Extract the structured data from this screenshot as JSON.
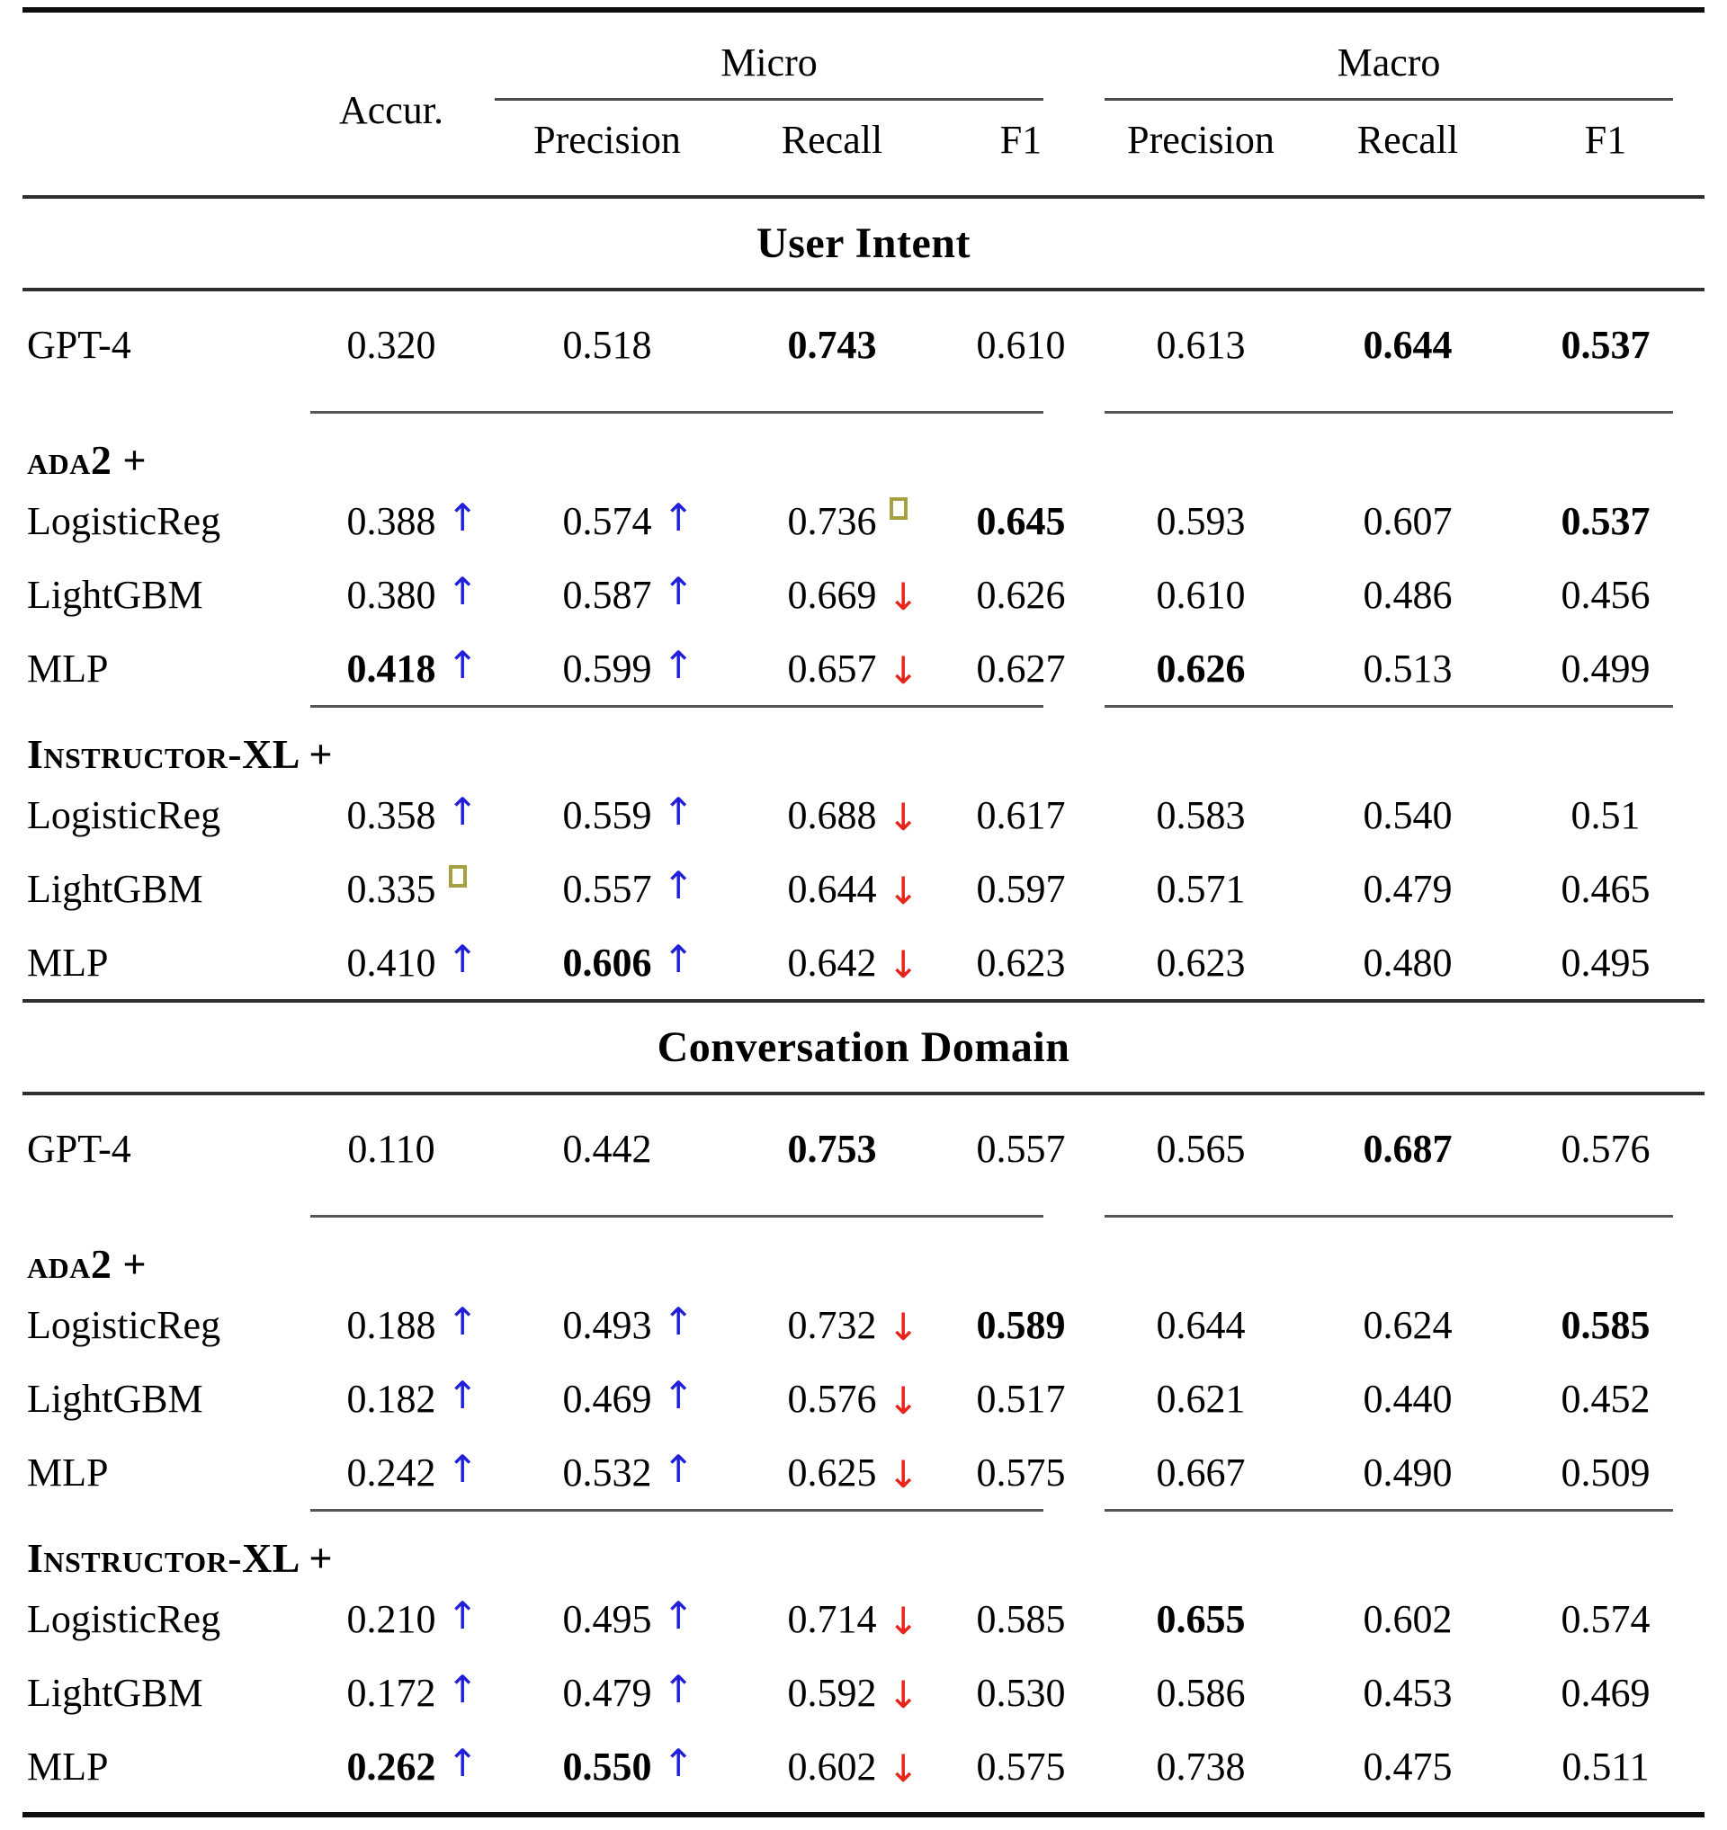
{
  "table": {
    "header": {
      "accur": "Accur.",
      "micro": "Micro",
      "macro": "Macro",
      "precision": "Precision",
      "recall": "Recall",
      "f1": "F1"
    },
    "markers": {
      "up": "↑",
      "down": "↓",
      "sq": "□"
    },
    "colors": {
      "up_arrow": "#1f1fd9",
      "down_arrow": "#e8231a",
      "square": "#a6a040",
      "text": "#000000"
    },
    "sections": [
      {
        "title": "User Intent",
        "groups": [
          {
            "label": null,
            "rows": [
              {
                "model": "GPT-4",
                "cells": [
                  {
                    "v": "0.320"
                  },
                  {
                    "v": "0.518"
                  },
                  {
                    "v": "0.743",
                    "b": true
                  },
                  {
                    "v": "0.610"
                  },
                  {
                    "v": "0.613"
                  },
                  {
                    "v": "0.644",
                    "b": true
                  },
                  {
                    "v": "0.537",
                    "b": true
                  }
                ]
              }
            ]
          },
          {
            "label": "ada2 +",
            "rows": [
              {
                "model": "LogisticReg",
                "cells": [
                  {
                    "v": "0.388",
                    "m": "up"
                  },
                  {
                    "v": "0.574",
                    "m": "up"
                  },
                  {
                    "v": "0.736",
                    "m": "sq"
                  },
                  {
                    "v": "0.645",
                    "b": true
                  },
                  {
                    "v": "0.593"
                  },
                  {
                    "v": "0.607"
                  },
                  {
                    "v": "0.537",
                    "b": true
                  }
                ]
              },
              {
                "model": "LightGBM",
                "cells": [
                  {
                    "v": "0.380",
                    "m": "up"
                  },
                  {
                    "v": "0.587",
                    "m": "up"
                  },
                  {
                    "v": "0.669",
                    "m": "down"
                  },
                  {
                    "v": "0.626"
                  },
                  {
                    "v": "0.610"
                  },
                  {
                    "v": "0.486"
                  },
                  {
                    "v": "0.456"
                  }
                ]
              },
              {
                "model": "MLP",
                "cells": [
                  {
                    "v": "0.418",
                    "b": true,
                    "m": "up"
                  },
                  {
                    "v": "0.599",
                    "m": "up"
                  },
                  {
                    "v": "0.657",
                    "m": "down"
                  },
                  {
                    "v": "0.627"
                  },
                  {
                    "v": "0.626",
                    "b": true
                  },
                  {
                    "v": "0.513"
                  },
                  {
                    "v": "0.499"
                  }
                ]
              }
            ]
          },
          {
            "label": "Instructor-XL +",
            "rows": [
              {
                "model": "LogisticReg",
                "cells": [
                  {
                    "v": "0.358",
                    "m": "up"
                  },
                  {
                    "v": "0.559",
                    "m": "up"
                  },
                  {
                    "v": "0.688",
                    "m": "down"
                  },
                  {
                    "v": "0.617"
                  },
                  {
                    "v": "0.583"
                  },
                  {
                    "v": "0.540"
                  },
                  {
                    "v": "0.51"
                  }
                ]
              },
              {
                "model": "LightGBM",
                "cells": [
                  {
                    "v": "0.335",
                    "m": "sq"
                  },
                  {
                    "v": "0.557",
                    "m": "up"
                  },
                  {
                    "v": "0.644",
                    "m": "down"
                  },
                  {
                    "v": "0.597"
                  },
                  {
                    "v": "0.571"
                  },
                  {
                    "v": "0.479"
                  },
                  {
                    "v": "0.465"
                  }
                ]
              },
              {
                "model": "MLP",
                "cells": [
                  {
                    "v": "0.410",
                    "m": "up"
                  },
                  {
                    "v": "0.606",
                    "b": true,
                    "m": "up"
                  },
                  {
                    "v": "0.642",
                    "m": "down"
                  },
                  {
                    "v": "0.623"
                  },
                  {
                    "v": "0.623"
                  },
                  {
                    "v": "0.480"
                  },
                  {
                    "v": "0.495"
                  }
                ]
              }
            ]
          }
        ]
      },
      {
        "title": "Conversation Domain",
        "groups": [
          {
            "label": null,
            "rows": [
              {
                "model": "GPT-4",
                "cells": [
                  {
                    "v": "0.110"
                  },
                  {
                    "v": "0.442"
                  },
                  {
                    "v": "0.753",
                    "b": true
                  },
                  {
                    "v": "0.557"
                  },
                  {
                    "v": "0.565"
                  },
                  {
                    "v": "0.687",
                    "b": true
                  },
                  {
                    "v": "0.576"
                  }
                ]
              }
            ]
          },
          {
            "label": "ada2 +",
            "rows": [
              {
                "model": "LogisticReg",
                "cells": [
                  {
                    "v": "0.188",
                    "m": "up"
                  },
                  {
                    "v": "0.493",
                    "m": "up"
                  },
                  {
                    "v": "0.732",
                    "m": "down"
                  },
                  {
                    "v": "0.589",
                    "b": true
                  },
                  {
                    "v": "0.644"
                  },
                  {
                    "v": "0.624"
                  },
                  {
                    "v": "0.585",
                    "b": true
                  }
                ]
              },
              {
                "model": "LightGBM",
                "cells": [
                  {
                    "v": "0.182",
                    "m": "up"
                  },
                  {
                    "v": "0.469",
                    "m": "up"
                  },
                  {
                    "v": "0.576",
                    "m": "down"
                  },
                  {
                    "v": "0.517"
                  },
                  {
                    "v": "0.621"
                  },
                  {
                    "v": "0.440"
                  },
                  {
                    "v": "0.452"
                  }
                ]
              },
              {
                "model": "MLP",
                "cells": [
                  {
                    "v": "0.242",
                    "m": "up"
                  },
                  {
                    "v": "0.532",
                    "m": "up"
                  },
                  {
                    "v": "0.625",
                    "m": "down"
                  },
                  {
                    "v": "0.575"
                  },
                  {
                    "v": "0.667"
                  },
                  {
                    "v": "0.490"
                  },
                  {
                    "v": "0.509"
                  }
                ]
              }
            ]
          },
          {
            "label": "Instructor-XL +",
            "rows": [
              {
                "model": "LogisticReg",
                "cells": [
                  {
                    "v": "0.210",
                    "m": "up"
                  },
                  {
                    "v": "0.495",
                    "m": "up"
                  },
                  {
                    "v": "0.714",
                    "m": "down"
                  },
                  {
                    "v": "0.585"
                  },
                  {
                    "v": "0.655",
                    "b": true
                  },
                  {
                    "v": "0.602"
                  },
                  {
                    "v": "0.574"
                  }
                ]
              },
              {
                "model": "LightGBM",
                "cells": [
                  {
                    "v": "0.172",
                    "m": "up"
                  },
                  {
                    "v": "0.479",
                    "m": "up"
                  },
                  {
                    "v": "0.592",
                    "m": "down"
                  },
                  {
                    "v": "0.530"
                  },
                  {
                    "v": "0.586"
                  },
                  {
                    "v": "0.453"
                  },
                  {
                    "v": "0.469"
                  }
                ]
              },
              {
                "model": "MLP",
                "cells": [
                  {
                    "v": "0.262",
                    "b": true,
                    "m": "up"
                  },
                  {
                    "v": "0.550",
                    "b": true,
                    "m": "up"
                  },
                  {
                    "v": "0.602",
                    "m": "down"
                  },
                  {
                    "v": "0.575"
                  },
                  {
                    "v": "0.738"
                  },
                  {
                    "v": "0.475"
                  },
                  {
                    "v": "0.511"
                  }
                ]
              }
            ]
          }
        ]
      }
    ]
  }
}
